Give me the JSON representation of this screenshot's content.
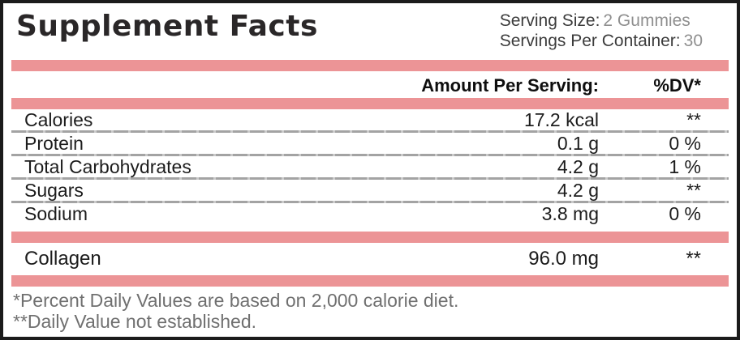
{
  "label": {
    "title": "Supplement Facts",
    "serving": {
      "size_label": "Serving Size:",
      "size_value": "2 Gummies",
      "container_label": "Servings Per Container:",
      "container_value": "30"
    },
    "columns": {
      "amount": "Amount Per Serving:",
      "dv": "%DV*"
    },
    "rows": [
      {
        "name": "Calories",
        "amount": "17.2 kcal",
        "dv": "**"
      },
      {
        "name": "Protein",
        "amount": "0.1 g",
        "dv": "0 %"
      },
      {
        "name": "Total Carbohydrates",
        "amount": "4.2 g",
        "dv": "1 %"
      },
      {
        "name": "Sugars",
        "amount": "4.2 g",
        "dv": "**"
      },
      {
        "name": "Sodium",
        "amount": "3.8 mg",
        "dv": "0 %"
      }
    ],
    "extra_rows": [
      {
        "name": "Collagen",
        "amount": "96.0 mg",
        "dv": "**"
      }
    ],
    "footnotes": [
      "*Percent Daily Values are based on 2,000 calorie diet.",
      "**Daily Value not established."
    ],
    "colors": {
      "accent_pink": "#EC9496",
      "border_black": "#1b1b1b",
      "separator_gray": "#a8a8a8",
      "muted_text": "#707070"
    }
  }
}
